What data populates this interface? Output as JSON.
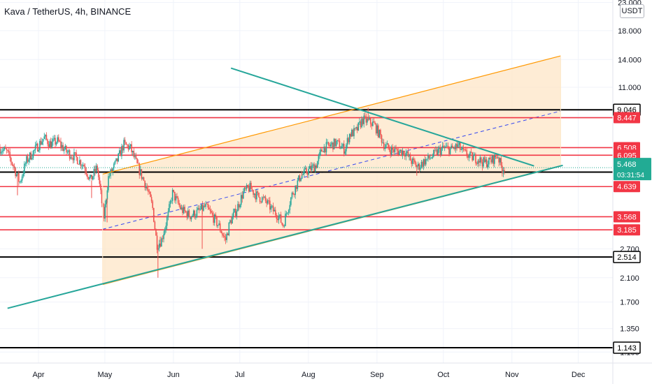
{
  "chart_data": {
    "type": "candlestick",
    "title": "Kava / TetherUS, 4h, BINANCE",
    "currency": "USDT",
    "scale": "log",
    "ylim": [
      1.0,
      23.5
    ],
    "x_ticks": [
      {
        "label": "Apr",
        "day": 31
      },
      {
        "label": "May",
        "day": 61
      },
      {
        "label": "Jun",
        "day": 92
      },
      {
        "label": "Jul",
        "day": 122
      },
      {
        "label": "Aug",
        "day": 153
      },
      {
        "label": "Sep",
        "day": 184
      },
      {
        "label": "Oct",
        "day": 214
      },
      {
        "label": "Nov",
        "day": 245
      },
      {
        "label": "Dec",
        "day": 275
      }
    ],
    "xlim_days": [
      13.6,
      290.6
    ],
    "y_ticks": [
      "23.000",
      "18.000",
      "14.000",
      "11.000",
      "8.500",
      "6.500",
      "2.700",
      "2.100",
      "1.700",
      "1.350",
      "1.100"
    ],
    "y_tick_values": [
      23.0,
      18.0,
      14.0,
      11.0,
      8.5,
      6.5,
      2.7,
      2.1,
      1.7,
      1.35,
      1.1
    ],
    "horizontal_levels": [
      {
        "value": 9.046,
        "label": "9.046",
        "color": "#000000",
        "style": "bordered"
      },
      {
        "value": 8.447,
        "label": "8.447",
        "color": "#f23645",
        "style": "filled"
      },
      {
        "value": 6.508,
        "label": "6.508",
        "color": "#f23645",
        "style": "filled"
      },
      {
        "value": 6.095,
        "label": "6.095",
        "color": "#f23645",
        "style": "filled"
      },
      {
        "value": 5.263,
        "label": "5.263",
        "color": "#000000",
        "style": "filled"
      },
      {
        "value": 4.639,
        "label": "4.639",
        "color": "#f23645",
        "style": "filled"
      },
      {
        "value": 3.568,
        "label": "3.568",
        "color": "#f23645",
        "style": "filled"
      },
      {
        "value": 3.185,
        "label": "3.185",
        "color": "#f23645",
        "style": "filled"
      },
      {
        "value": 2.514,
        "label": "2.514",
        "color": "#000000",
        "style": "bordered"
      },
      {
        "value": 1.143,
        "label": "1.143",
        "color": "#000000",
        "style": "bordered"
      }
    ],
    "current_price": {
      "value": 5.468,
      "label": "5.468",
      "countdown": "03:31:54",
      "color": "#22ab94"
    },
    "channel": {
      "upper": [
        {
          "day": 60,
          "price": 5.17
        },
        {
          "day": 267,
          "price": 14.45
        }
      ],
      "lower": [
        {
          "day": 60,
          "price": 1.98
        },
        {
          "day": 267,
          "price": 5.54
        }
      ],
      "mid": [
        {
          "day": 60,
          "price": 3.2
        },
        {
          "day": 267,
          "price": 8.95
        }
      ],
      "fill": "#fde6c7",
      "edge": "#ff9800",
      "mid_color": "#3548f0"
    },
    "support_line": [
      {
        "day": 17,
        "price": 1.61
      },
      {
        "day": 268,
        "price": 5.58
      }
    ],
    "resistance_line": [
      {
        "day": 118,
        "price": 13.0
      },
      {
        "day": 255,
        "price": 5.55
      }
    ],
    "trend_color": "#26a69a",
    "path_points": [
      [
        13.6,
        6.5
      ],
      [
        17,
        6.3
      ],
      [
        20,
        5.6
      ],
      [
        23,
        4.8
      ],
      [
        26,
        5.8
      ],
      [
        30,
        6.4
      ],
      [
        34,
        7.1
      ],
      [
        37,
        6.7
      ],
      [
        40,
        6.9
      ],
      [
        44,
        6.3
      ],
      [
        48,
        6.0
      ],
      [
        52,
        5.6
      ],
      [
        55,
        4.9
      ],
      [
        58,
        5.5
      ],
      [
        60,
        4.1
      ],
      [
        61,
        3.5
      ],
      [
        63,
        5.0
      ],
      [
        67,
        5.8
      ],
      [
        70,
        6.7
      ],
      [
        73,
        6.5
      ],
      [
        76,
        5.6
      ],
      [
        80,
        4.7
      ],
      [
        83,
        3.9
      ],
      [
        85,
        2.8
      ],
      [
        87,
        2.9
      ],
      [
        90,
        3.6
      ],
      [
        92,
        4.4
      ],
      [
        96,
        3.8
      ],
      [
        100,
        3.6
      ],
      [
        103,
        3.7
      ],
      [
        107,
        3.9
      ],
      [
        110,
        3.6
      ],
      [
        113,
        3.3
      ],
      [
        116,
        2.9
      ],
      [
        118,
        3.4
      ],
      [
        121,
        3.8
      ],
      [
        124,
        4.4
      ],
      [
        127,
        4.6
      ],
      [
        130,
        4.3
      ],
      [
        134,
        4.1
      ],
      [
        137,
        3.8
      ],
      [
        140,
        3.6
      ],
      [
        142,
        3.3
      ],
      [
        144,
        3.8
      ],
      [
        146,
        4.3
      ],
      [
        148,
        4.7
      ],
      [
        150,
        5.1
      ],
      [
        153,
        5.3
      ],
      [
        157,
        5.6
      ],
      [
        160,
        6.5
      ],
      [
        163,
        6.6
      ],
      [
        166,
        6.8
      ],
      [
        170,
        6.4
      ],
      [
        172,
        7.3
      ],
      [
        175,
        7.5
      ],
      [
        178,
        8.3
      ],
      [
        180,
        8.2
      ],
      [
        183,
        8.0
      ],
      [
        186,
        7.2
      ],
      [
        188,
        6.6
      ],
      [
        191,
        6.4
      ],
      [
        194,
        6.3
      ],
      [
        197,
        6.3
      ],
      [
        200,
        5.8
      ],
      [
        203,
        5.5
      ],
      [
        206,
        5.8
      ],
      [
        209,
        6.0
      ],
      [
        212,
        6.3
      ],
      [
        215,
        6.5
      ],
      [
        218,
        6.4
      ],
      [
        221,
        6.6
      ],
      [
        224,
        6.2
      ],
      [
        227,
        6.0
      ],
      [
        230,
        5.9
      ],
      [
        233,
        5.7
      ],
      [
        236,
        5.8
      ],
      [
        239,
        6.1
      ],
      [
        241,
        5.4
      ],
      [
        242,
        5.5
      ]
    ],
    "spikes": [
      [
        21.5,
        4.3
      ],
      [
        55,
        4.2
      ],
      [
        62,
        3.4
      ],
      [
        85,
        2.1
      ],
      [
        86,
        3.0
      ],
      [
        105,
        2.7
      ],
      [
        150,
        5.3
      ],
      [
        180,
        9.2
      ],
      [
        202,
        5.1
      ],
      [
        230,
        5.7
      ]
    ],
    "candle_colors": {
      "up": "#26a69a",
      "down": "#ef5350"
    }
  }
}
